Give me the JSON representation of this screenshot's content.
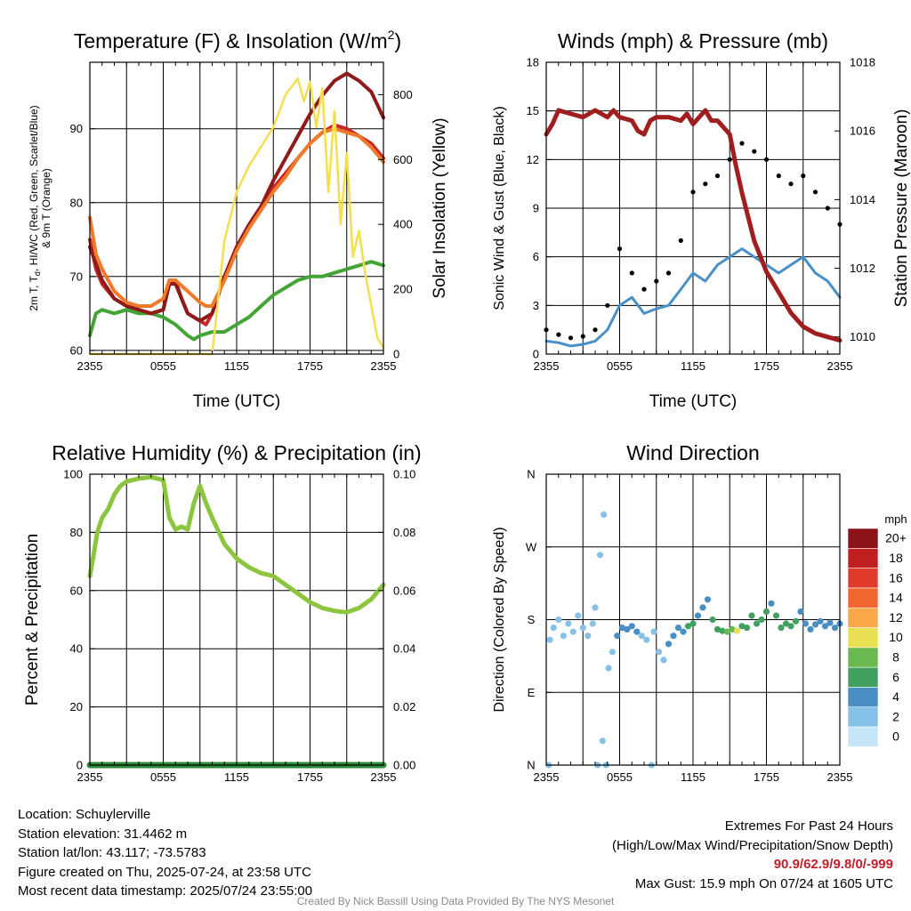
{
  "panels": {
    "temperature": {
      "title": "Temperature (F) & Insolation (W/m",
      "title_sup": "2",
      "title_end": ")",
      "ylabel_left_line1": "2m T, T",
      "ylabel_left_sub": "d",
      "ylabel_left_line1_end": ", HI/WC (Red, Green, Scarlet/Blue)",
      "ylabel_left_line2": "& 9m T (Orange)",
      "ylabel_right": "Solar Insolation (Yellow)",
      "xlabel": "Time (UTC)"
    },
    "wind": {
      "title": "Winds (mph) & Pressure (mb)",
      "ylabel_left": "Sonic Wind & Gust (Blue, Black)",
      "ylabel_right": "Station Pressure (Maroon)",
      "xlabel": "Time (UTC)"
    },
    "humidity": {
      "title": "Relative Humidity (%) & Precipitation (in)",
      "ylabel_left": "Percent & Precipitation"
    },
    "direction": {
      "title": "Wind Direction",
      "ylabel_left": "Direction (Colored By Speed)",
      "colorbar_title": "mph"
    }
  },
  "chart_data": [
    {
      "id": "temperature",
      "type": "line",
      "x_ticks": [
        "2355",
        "0555",
        "1155",
        "1755",
        "2355"
      ],
      "x_range_hours": [
        0,
        24
      ],
      "y_left_ticks": [
        60,
        70,
        80,
        90
      ],
      "y_left_range": [
        59.5,
        99
      ],
      "y_right_ticks": [
        0,
        200,
        400,
        600,
        800
      ],
      "y_right_range": [
        0,
        900
      ],
      "series": [
        {
          "name": "2m T",
          "color": "#c62828",
          "axis": "left",
          "x": [
            0,
            0.5,
            1,
            2,
            3,
            4,
            5,
            6,
            6.5,
            7,
            7.5,
            8,
            8.5,
            9,
            9.5,
            10,
            11,
            12,
            13,
            14,
            15,
            16,
            17,
            18,
            19,
            20,
            21,
            22,
            23,
            24
          ],
          "y": [
            75,
            71,
            69,
            67,
            66,
            65.5,
            65,
            65.5,
            69,
            69.5,
            67,
            65,
            64.5,
            64,
            63.5,
            65,
            70,
            74,
            77,
            79.5,
            82,
            84,
            86,
            88,
            89.5,
            90.5,
            90,
            89,
            88,
            86
          ]
        },
        {
          "name": "Td",
          "color": "#43a536",
          "axis": "left",
          "x": [
            0,
            0.5,
            1,
            2,
            3,
            4,
            5,
            6,
            7,
            8,
            8.5,
            9,
            10,
            11,
            12,
            13,
            14,
            15,
            16,
            17,
            18,
            19,
            20,
            21,
            22,
            23,
            24
          ],
          "y": [
            62,
            65,
            65.5,
            65,
            65.5,
            65,
            65,
            64.5,
            63.5,
            62,
            61.5,
            62,
            62.5,
            62.5,
            63.5,
            64.5,
            66,
            67.5,
            68.5,
            69.5,
            70,
            70,
            70.5,
            71,
            71.5,
            72,
            71.5
          ]
        },
        {
          "name": "HI/WC",
          "color": "#8e1a1a",
          "axis": "left",
          "x": [
            0,
            1,
            2,
            3,
            4,
            5,
            6,
            6.5,
            7,
            8,
            9,
            10,
            11,
            12,
            13,
            14,
            15,
            16,
            17,
            18,
            19,
            20,
            21,
            22,
            23,
            24
          ],
          "y": [
            74,
            69.5,
            67,
            66,
            65.5,
            65,
            65.5,
            69,
            69,
            65,
            64,
            65,
            70,
            74,
            77,
            79.5,
            83,
            86,
            89,
            92,
            94.5,
            96.5,
            97.5,
            96.5,
            95,
            91.5
          ]
        },
        {
          "name": "9m T",
          "color": "#f07a2a",
          "axis": "left",
          "x": [
            0,
            0.5,
            1,
            2,
            3,
            4,
            5,
            6,
            6.5,
            7,
            8,
            9,
            9.5,
            10,
            11,
            12,
            13,
            14,
            15,
            16,
            17,
            18,
            19,
            20,
            21,
            22,
            23,
            24
          ],
          "y": [
            78,
            73,
            71,
            68,
            66.5,
            66,
            66,
            67,
            69.5,
            69.5,
            68,
            66.5,
            66,
            66,
            69.5,
            73.5,
            76.5,
            79,
            81.5,
            83.5,
            86,
            88,
            89.5,
            90,
            89.5,
            89,
            87.5,
            85.5
          ]
        },
        {
          "name": "Solar Insolation",
          "color": "#f5de50",
          "axis": "right",
          "x": [
            0,
            1,
            2,
            3,
            4,
            5,
            6,
            7,
            8,
            9,
            10,
            11,
            12,
            13,
            14,
            15,
            16,
            17,
            17.5,
            18,
            18.5,
            19,
            19.5,
            20,
            20.5,
            21,
            21.5,
            22,
            22.5,
            23,
            23.5,
            24
          ],
          "y": [
            0,
            0,
            0,
            0,
            0,
            0,
            0,
            0,
            0,
            0,
            0,
            350,
            500,
            580,
            640,
            700,
            800,
            850,
            780,
            840,
            700,
            820,
            500,
            750,
            400,
            620,
            300,
            380,
            250,
            150,
            50,
            20
          ]
        }
      ]
    },
    {
      "id": "wind",
      "type": "line",
      "x_ticks": [
        "2355",
        "0555",
        "1155",
        "1755",
        "2355"
      ],
      "x_range_hours": [
        0,
        24
      ],
      "y_left_ticks": [
        0,
        3,
        6,
        9,
        12,
        15,
        18
      ],
      "y_left_range": [
        0,
        18
      ],
      "y_right_ticks": [
        1010,
        1012,
        1014,
        1016,
        1018
      ],
      "y_right_range": [
        1009.5,
        1018
      ],
      "series": [
        {
          "name": "Sonic Wind",
          "color": "#4a90c8",
          "axis": "left",
          "x": [
            0,
            1,
            2,
            3,
            4,
            5,
            6,
            7,
            8,
            9,
            10,
            11,
            12,
            13,
            14,
            15,
            16,
            17,
            18,
            19,
            20,
            21,
            22,
            23,
            24
          ],
          "y": [
            0.8,
            0.7,
            0.5,
            0.6,
            0.8,
            1.5,
            3,
            3.5,
            2.5,
            2.8,
            3,
            4,
            5,
            4.5,
            5.5,
            6,
            6.5,
            6,
            5.5,
            5,
            5.5,
            6,
            5,
            4.5,
            3.5
          ]
        },
        {
          "name": "Gust",
          "color": "#000000",
          "axis": "left",
          "x": [
            0,
            1,
            2,
            3,
            4,
            5,
            6,
            7,
            8,
            9,
            10,
            11,
            12,
            13,
            14,
            15,
            16,
            17,
            18,
            19,
            20,
            21,
            22,
            23,
            24
          ],
          "y": [
            1.5,
            1.2,
            1.0,
            1.1,
            1.5,
            3,
            6.5,
            5,
            4,
            4.5,
            5,
            7,
            10,
            10.5,
            11,
            12,
            13,
            12.5,
            12,
            11,
            10.5,
            11,
            10,
            9,
            8
          ]
        },
        {
          "name": "Station Pressure",
          "color": "#a01e1e",
          "axis": "right",
          "x": [
            0,
            0.5,
            1,
            2,
            3,
            4,
            5,
            5.5,
            6,
            7,
            7.5,
            8,
            8.5,
            9,
            10,
            11,
            11.5,
            12,
            13,
            13.5,
            14,
            15,
            15.5,
            16,
            17,
            18,
            19,
            20,
            21,
            22,
            23,
            24
          ],
          "y": [
            1015.9,
            1016.2,
            1016.6,
            1016.5,
            1016.4,
            1016.6,
            1016.4,
            1016.6,
            1016.4,
            1016.3,
            1016.0,
            1015.9,
            1016.3,
            1016.4,
            1016.4,
            1016.3,
            1016.5,
            1016.2,
            1016.6,
            1016.3,
            1016.3,
            1015.9,
            1015.0,
            1014.2,
            1012.8,
            1011.9,
            1011.3,
            1010.7,
            1010.3,
            1010.1,
            1010.0,
            1009.9
          ]
        }
      ]
    },
    {
      "id": "humidity",
      "type": "line",
      "x_ticks": [
        "2355",
        "0555",
        "1155",
        "1755",
        "2355"
      ],
      "x_range_hours": [
        0,
        24
      ],
      "y_left_ticks": [
        0,
        20,
        40,
        60,
        80,
        100
      ],
      "y_left_range": [
        0,
        100
      ],
      "y_right_ticks": [
        "0.00",
        "0.02",
        "0.04",
        "0.06",
        "0.08",
        "0.10"
      ],
      "y_right_range": [
        0,
        0.1
      ],
      "series": [
        {
          "name": "Relative Humidity",
          "color": "#8cc63f",
          "axis": "left",
          "x": [
            0,
            0.3,
            0.6,
            1,
            1.5,
            2,
            2.5,
            3,
            4,
            5,
            6,
            6.5,
            7,
            7.5,
            8,
            8.5,
            9,
            9.5,
            10,
            11,
            12,
            13,
            14,
            15,
            16,
            17,
            18,
            19,
            20,
            21,
            22,
            23,
            24
          ],
          "y": [
            65,
            72,
            80,
            85,
            88,
            93,
            96,
            97.5,
            98.5,
            99,
            98,
            85,
            81,
            82,
            81,
            90,
            96,
            90,
            85,
            76,
            71,
            68,
            66,
            65,
            62,
            59,
            56,
            54,
            53,
            52.5,
            54,
            57,
            62
          ]
        },
        {
          "name": "Precipitation",
          "color": "#2e8b3a",
          "axis": "right",
          "x": [
            0,
            24
          ],
          "y": [
            0,
            0
          ]
        }
      ]
    },
    {
      "id": "direction",
      "type": "scatter",
      "x_ticks": [
        "2355",
        "0555",
        "1155",
        "1755",
        "2355"
      ],
      "x_range_hours": [
        0,
        24
      ],
      "y_ticks": [
        "N",
        "E",
        "S",
        "W",
        "N"
      ],
      "y_range_deg": [
        0,
        360
      ],
      "colorbar_labels": [
        "0",
        "2",
        "4",
        "6",
        "8",
        "10",
        "12",
        "14",
        "16",
        "18",
        "20+"
      ],
      "colorbar_colors": [
        "#c6e6f8",
        "#86c1e8",
        "#4a8fc4",
        "#40a060",
        "#6ab850",
        "#e8e050",
        "#f8a848",
        "#f06530",
        "#e03a2a",
        "#c22020",
        "#8c1418"
      ],
      "points": [
        {
          "x": 0.2,
          "y": 0,
          "speed": 1
        },
        {
          "x": 0.3,
          "y": 155,
          "speed": 1
        },
        {
          "x": 0.6,
          "y": 170,
          "speed": 1
        },
        {
          "x": 1.0,
          "y": 180,
          "speed": 1
        },
        {
          "x": 1.4,
          "y": 160,
          "speed": 1
        },
        {
          "x": 1.8,
          "y": 175,
          "speed": 1
        },
        {
          "x": 2.2,
          "y": 165,
          "speed": 1
        },
        {
          "x": 2.6,
          "y": 185,
          "speed": 1
        },
        {
          "x": 3.0,
          "y": 170,
          "speed": 1
        },
        {
          "x": 3.4,
          "y": 160,
          "speed": 1
        },
        {
          "x": 3.8,
          "y": 175,
          "speed": 1
        },
        {
          "x": 4.0,
          "y": 195,
          "speed": 1
        },
        {
          "x": 4.2,
          "y": 0,
          "speed": 1
        },
        {
          "x": 4.4,
          "y": 260,
          "speed": 1
        },
        {
          "x": 4.6,
          "y": 30,
          "speed": 1
        },
        {
          "x": 4.7,
          "y": 310,
          "speed": 1
        },
        {
          "x": 4.9,
          "y": 0,
          "speed": 1
        },
        {
          "x": 5.1,
          "y": 120,
          "speed": 1
        },
        {
          "x": 5.4,
          "y": 140,
          "speed": 2
        },
        {
          "x": 5.8,
          "y": 160,
          "speed": 3
        },
        {
          "x": 6.2,
          "y": 170,
          "speed": 3
        },
        {
          "x": 6.6,
          "y": 168,
          "speed": 3
        },
        {
          "x": 7.0,
          "y": 172,
          "speed": 3
        },
        {
          "x": 7.4,
          "y": 165,
          "speed": 3
        },
        {
          "x": 7.8,
          "y": 160,
          "speed": 2
        },
        {
          "x": 8.2,
          "y": 155,
          "speed": 2
        },
        {
          "x": 8.6,
          "y": 0,
          "speed": 1
        },
        {
          "x": 8.8,
          "y": 165,
          "speed": 2
        },
        {
          "x": 9.2,
          "y": 140,
          "speed": 2
        },
        {
          "x": 9.6,
          "y": 130,
          "speed": 2
        },
        {
          "x": 10.0,
          "y": 150,
          "speed": 3
        },
        {
          "x": 10.4,
          "y": 160,
          "speed": 3
        },
        {
          "x": 10.8,
          "y": 170,
          "speed": 3
        },
        {
          "x": 11.2,
          "y": 165,
          "speed": 4
        },
        {
          "x": 11.6,
          "y": 172,
          "speed": 5
        },
        {
          "x": 12.0,
          "y": 175,
          "speed": 5
        },
        {
          "x": 12.4,
          "y": 185,
          "speed": 4
        },
        {
          "x": 12.8,
          "y": 195,
          "speed": 4
        },
        {
          "x": 13.2,
          "y": 205,
          "speed": 4
        },
        {
          "x": 13.6,
          "y": 180,
          "speed": 5
        },
        {
          "x": 14.0,
          "y": 168,
          "speed": 6
        },
        {
          "x": 14.4,
          "y": 166,
          "speed": 6
        },
        {
          "x": 14.8,
          "y": 165,
          "speed": 7
        },
        {
          "x": 15.2,
          "y": 168,
          "speed": 7
        },
        {
          "x": 15.6,
          "y": 166,
          "speed": 9
        },
        {
          "x": 16.0,
          "y": 172,
          "speed": 6
        },
        {
          "x": 16.4,
          "y": 170,
          "speed": 5
        },
        {
          "x": 16.8,
          "y": 185,
          "speed": 5
        },
        {
          "x": 17.2,
          "y": 175,
          "speed": 6
        },
        {
          "x": 17.6,
          "y": 180,
          "speed": 6
        },
        {
          "x": 18.0,
          "y": 190,
          "speed": 5
        },
        {
          "x": 18.4,
          "y": 200,
          "speed": 4
        },
        {
          "x": 18.8,
          "y": 185,
          "speed": 5
        },
        {
          "x": 19.2,
          "y": 170,
          "speed": 6
        },
        {
          "x": 19.6,
          "y": 175,
          "speed": 5
        },
        {
          "x": 20.0,
          "y": 172,
          "speed": 6
        },
        {
          "x": 20.4,
          "y": 178,
          "speed": 5
        },
        {
          "x": 20.8,
          "y": 190,
          "speed": 4
        },
        {
          "x": 21.2,
          "y": 175,
          "speed": 4
        },
        {
          "x": 21.6,
          "y": 168,
          "speed": 4
        },
        {
          "x": 22.0,
          "y": 174,
          "speed": 4
        },
        {
          "x": 22.4,
          "y": 178,
          "speed": 4
        },
        {
          "x": 22.8,
          "y": 172,
          "speed": 4
        },
        {
          "x": 23.2,
          "y": 176,
          "speed": 4
        },
        {
          "x": 23.6,
          "y": 170,
          "speed": 4
        },
        {
          "x": 24.0,
          "y": 175,
          "speed": 3
        }
      ]
    }
  ],
  "info": {
    "location": "Location: Schuylerville",
    "elevation": "Station elevation: 31.4462 m",
    "latlon": "Station lat/lon: 43.117; -73.5783",
    "created": "Figure created on Thu, 2025-07-24, at 23:58 UTC",
    "recent": "Most recent data timestamp: 2025/07/24 23:55:00",
    "extremes_title": "Extremes For Past 24 Hours",
    "extremes_fields": "(High/Low/Max Wind/Precipitation/Snow Depth)",
    "extremes_values": "90.9/62.9/9.8/0/-999",
    "max_gust": "Max Gust: 15.9 mph On 07/24 at 1605 UTC"
  },
  "credit": "Created By Nick Bassill Using Data Provided By The NYS Mesonet"
}
